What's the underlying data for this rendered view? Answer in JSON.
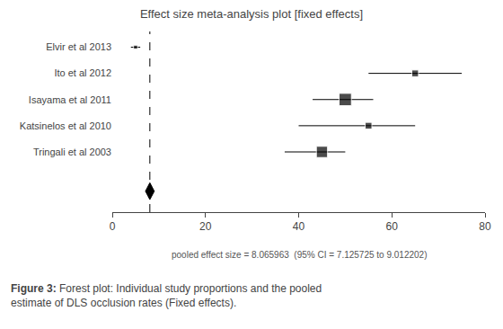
{
  "chart_data": {
    "type": "forest",
    "title": "Effect size meta-analysis plot [fixed effects]",
    "categories": [
      "Elvir et al 2013",
      "Ito et al 2012",
      "Isayama et al 2011",
      "Katsinelos et al 2010",
      "Tringali et al 2003"
    ],
    "values": [
      5.0,
      65.0,
      50.0,
      55.0,
      45.0
    ],
    "ci_low": [
      4.0,
      55.0,
      43.0,
      40.0,
      37.0
    ],
    "ci_high": [
      6.0,
      75.0,
      56.0,
      65.0,
      50.0
    ],
    "box_sizes": [
      0.18,
      0.3,
      0.55,
      0.3,
      0.5
    ],
    "pooled": {
      "value": 8.065963,
      "ci_low": 7.125725,
      "ci_high": 9.012202,
      "label": "pooled effect size = 8.065963  (95% CI = 7.125725 to 9.012202)"
    },
    "xlim": [
      0,
      80
    ],
    "xticks": [
      0,
      20,
      40,
      60,
      80
    ],
    "color": "#000000",
    "grid": false,
    "caption": {
      "bold": "Figure 3:",
      "text": " Forest plot: Individual study proportions and the pooled\nestimate of DLS occlusion rates (Fixed effects)."
    }
  }
}
